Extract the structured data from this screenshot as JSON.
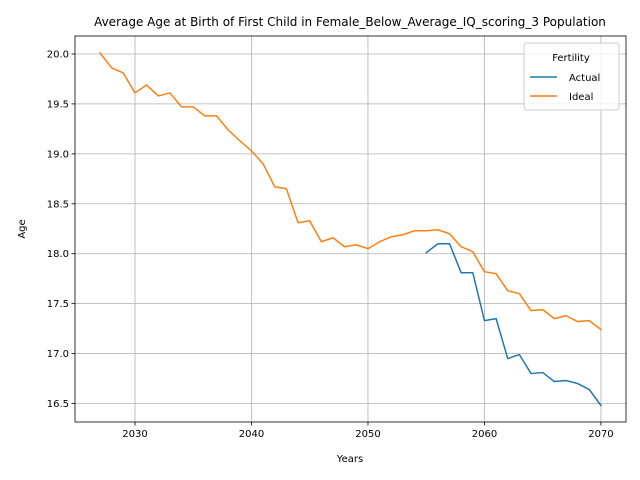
{
  "chart_data": {
    "type": "line",
    "title": "Average Age at Birth of First Child in Female_Below_Average_IQ_scoring_3 Population",
    "xlabel": "Years",
    "ylabel": "Age",
    "xlim": [
      2024.85,
      2072.15
    ],
    "ylim": [
      16.315,
      20.18
    ],
    "x_ticks": [
      2030,
      2040,
      2050,
      2060,
      2070
    ],
    "y_ticks": [
      16.5,
      17.0,
      17.5,
      18.0,
      18.5,
      19.0,
      19.5,
      20.0
    ],
    "grid": true,
    "legend": {
      "title": "Fertility",
      "position": "top-right"
    },
    "series": [
      {
        "name": "Actual",
        "color": "#1f77b4",
        "x": [
          2055,
          2056,
          2057,
          2058,
          2059,
          2060,
          2061,
          2062,
          2063,
          2064,
          2065,
          2066,
          2067,
          2068,
          2069,
          2070
        ],
        "values": [
          18.01,
          18.1,
          18.1,
          17.81,
          17.81,
          17.33,
          17.35,
          16.95,
          16.99,
          16.8,
          16.81,
          16.72,
          16.73,
          16.7,
          16.64,
          16.48
        ]
      },
      {
        "name": "Ideal",
        "color": "#ff7f0e",
        "x": [
          2027,
          2028,
          2029,
          2030,
          2031,
          2032,
          2033,
          2034,
          2035,
          2036,
          2037,
          2038,
          2039,
          2040,
          2041,
          2042,
          2043,
          2044,
          2045,
          2046,
          2047,
          2048,
          2049,
          2050,
          2051,
          2052,
          2053,
          2054,
          2055,
          2056,
          2057,
          2058,
          2059,
          2060,
          2061,
          2062,
          2063,
          2064,
          2065,
          2066,
          2067,
          2068,
          2069,
          2070
        ],
        "values": [
          20.01,
          19.86,
          19.81,
          19.61,
          19.69,
          19.58,
          19.61,
          19.47,
          19.47,
          19.38,
          19.38,
          19.24,
          19.13,
          19.03,
          18.9,
          18.67,
          18.65,
          18.31,
          18.33,
          18.12,
          18.16,
          18.07,
          18.09,
          18.05,
          18.12,
          18.17,
          18.19,
          18.23,
          18.23,
          18.24,
          18.2,
          18.07,
          18.02,
          17.82,
          17.8,
          17.63,
          17.6,
          17.43,
          17.44,
          17.35,
          17.38,
          17.32,
          17.33,
          17.24
        ]
      }
    ]
  }
}
